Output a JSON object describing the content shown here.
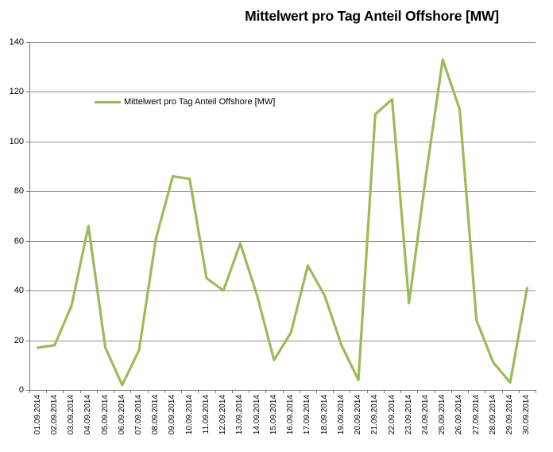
{
  "title": "Mittelwert pro Tag Anteil Offshore [MW]",
  "legend": {
    "label": "Mittelwert pro Tag Anteil Offshore [MW]"
  },
  "colors": {
    "series_line": "#9BBB59",
    "gridline": "#8E8E8E",
    "axis": "#747474",
    "text": "#000000",
    "background": "#FFFFFF"
  },
  "chart_data": {
    "type": "line",
    "title": "Mittelwert pro Tag Anteil Offshore [MW]",
    "categories": [
      "01.09.2014",
      "02.09.2014",
      "03.09.2014",
      "04.09.2014",
      "05.09.2014",
      "06.09.2014",
      "07.09.2014",
      "08.09.2014",
      "09.09.2014",
      "10.09.2014",
      "11.09.2014",
      "12.09.2014",
      "13.09.2014",
      "14.09.2014",
      "15.09.2014",
      "16.09.2014",
      "17.09.2014",
      "18.09.2014",
      "19.09.2014",
      "20.09.2014",
      "21.09.2014",
      "22.09.2014",
      "23.09.2014",
      "24.09.2014",
      "25.09.2014",
      "26.09.2014",
      "27.09.2014",
      "28.09.2014",
      "29.09.2014",
      "30.09.2014"
    ],
    "series": [
      {
        "name": "Mittelwert pro Tag Anteil Offshore [MW]",
        "values": [
          17,
          18,
          34,
          66,
          17,
          2,
          16,
          61,
          86,
          85,
          45,
          40,
          59,
          38,
          12,
          23,
          50,
          38,
          18,
          4,
          111,
          117,
          35,
          86,
          133,
          113,
          28,
          11,
          3,
          41
        ]
      }
    ],
    "xlabel": "",
    "ylabel": "",
    "ylim": [
      0,
      140
    ],
    "yticks": [
      0,
      20,
      40,
      60,
      80,
      100,
      120,
      140
    ],
    "grid": true,
    "legend_position": "inside-top-left"
  }
}
